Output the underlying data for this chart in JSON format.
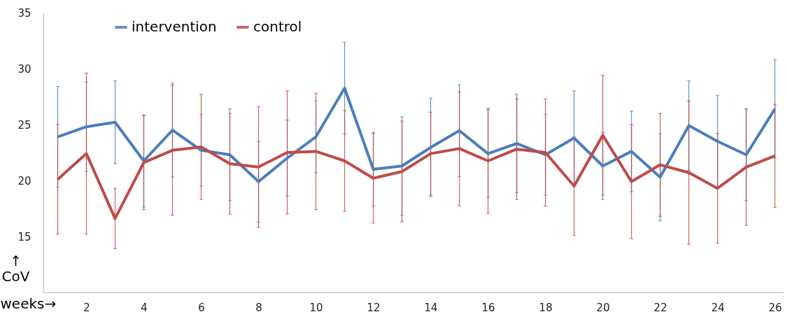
{
  "chart_data": {
    "type": "line",
    "xlabel": "weeks→",
    "ylabel": "↑\nCoV",
    "x": [
      1,
      2,
      3,
      4,
      5,
      6,
      7,
      8,
      9,
      10,
      11,
      12,
      13,
      14,
      15,
      16,
      17,
      18,
      19,
      20,
      21,
      22,
      23,
      24,
      25,
      26
    ],
    "xlim": [
      0.5,
      26.3
    ],
    "xticks": [
      2,
      4,
      6,
      8,
      10,
      12,
      14,
      16,
      18,
      20,
      22,
      24,
      26
    ],
    "ylim": [
      10,
      35
    ],
    "yticks": [
      15,
      20,
      25,
      30,
      35
    ],
    "grid": false,
    "legend": "top left",
    "marker": "none",
    "line_style": "solid",
    "series": [
      {
        "name": "intervention",
        "color": "#4a7ebb",
        "values": [
          23.9,
          24.8,
          25.2,
          21.75,
          24.5,
          22.7,
          22.3,
          19.9,
          22.0,
          23.9,
          28.25,
          21.0,
          21.3,
          22.95,
          24.45,
          22.4,
          23.3,
          22.3,
          23.8,
          21.3,
          22.6,
          20.3,
          24.9,
          23.5,
          22.3,
          26.4
        ],
        "errors": [
          4.5,
          4.0,
          3.7,
          4.1,
          4.2,
          3.2,
          4.1,
          3.6,
          3.4,
          3.2,
          4.1,
          3.3,
          4.4,
          4.4,
          4.1,
          3.9,
          4.4,
          3.6,
          4.2,
          3.0,
          3.6,
          3.9,
          4.0,
          4.1,
          4.1,
          4.4
        ]
      },
      {
        "name": "control",
        "color": "#be4b48",
        "values": [
          20.1,
          22.4,
          16.6,
          21.6,
          22.7,
          23.0,
          21.5,
          21.2,
          22.5,
          22.6,
          21.75,
          20.2,
          20.8,
          22.4,
          22.85,
          21.75,
          22.8,
          22.5,
          19.5,
          24.05,
          19.9,
          21.4,
          20.7,
          19.3,
          21.2,
          22.2
        ],
        "errors": [
          4.9,
          7.2,
          2.7,
          4.2,
          5.8,
          4.7,
          4.5,
          5.4,
          5.5,
          5.2,
          4.5,
          4.0,
          4.5,
          3.7,
          5.1,
          4.7,
          4.5,
          4.8,
          4.4,
          5.35,
          5.1,
          4.6,
          6.4,
          4.9,
          5.2,
          4.6
        ]
      }
    ]
  }
}
